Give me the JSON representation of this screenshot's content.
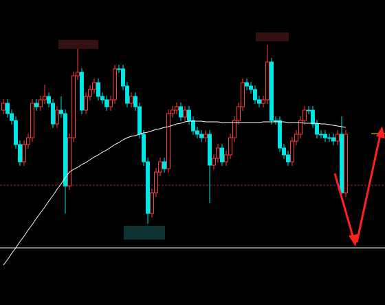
{
  "chart_data": {
    "type": "candlestick",
    "up_color": "#ff3b3b",
    "down_color": "#00e5e5",
    "ylim": [
      0,
      443
    ],
    "open": [
      283,
      293,
      278,
      268,
      233,
      208,
      233,
      243,
      293,
      288,
      298,
      303,
      293,
      263,
      283,
      278,
      173,
      243,
      333,
      338,
      283,
      303,
      313,
      323,
      303,
      298,
      288,
      298,
      343,
      343,
      318,
      293,
      303,
      288,
      248,
      208,
      133,
      163,
      193,
      208,
      198,
      278,
      283,
      288,
      273,
      283,
      268,
      253,
      248,
      243,
      248,
      203,
      213,
      228,
      208,
      218,
      243,
      268,
      288,
      323,
      318,
      313,
      298,
      293,
      298,
      353,
      268,
      268,
      228,
      218,
      208,
      238,
      248,
      268,
      283,
      283,
      263,
      248,
      248,
      243,
      243,
      238,
      248,
      163
    ],
    "high": [
      299,
      299,
      284,
      274,
      239,
      239,
      249,
      299,
      299,
      304,
      320,
      309,
      299,
      289,
      303,
      284,
      249,
      339,
      373,
      344,
      309,
      319,
      329,
      329,
      309,
      304,
      304,
      349,
      349,
      349,
      324,
      309,
      309,
      294,
      254,
      214,
      169,
      199,
      214,
      214,
      284,
      289,
      294,
      294,
      289,
      289,
      274,
      259,
      254,
      254,
      254,
      219,
      234,
      234,
      224,
      249,
      274,
      294,
      329,
      329,
      324,
      319,
      304,
      304,
      378,
      359,
      274,
      274,
      234,
      224,
      244,
      254,
      274,
      289,
      289,
      289,
      269,
      254,
      254,
      249,
      249,
      254,
      274,
      254
    ],
    "low": [
      277,
      272,
      262,
      227,
      202,
      202,
      227,
      237,
      282,
      282,
      292,
      287,
      257,
      257,
      272,
      133,
      167,
      237,
      327,
      277,
      277,
      297,
      307,
      297,
      292,
      282,
      282,
      292,
      337,
      312,
      287,
      287,
      282,
      242,
      202,
      118,
      127,
      157,
      187,
      192,
      192,
      272,
      277,
      267,
      267,
      262,
      247,
      242,
      237,
      237,
      148,
      197,
      207,
      202,
      202,
      212,
      237,
      262,
      282,
      312,
      307,
      292,
      287,
      287,
      292,
      262,
      262,
      222,
      212,
      202,
      202,
      232,
      242,
      262,
      277,
      257,
      242,
      242,
      237,
      237,
      232,
      232,
      158,
      157
    ],
    "close": [
      293,
      278,
      268,
      233,
      208,
      233,
      243,
      293,
      288,
      298,
      303,
      293,
      263,
      283,
      278,
      173,
      243,
      333,
      338,
      283,
      303,
      313,
      323,
      303,
      298,
      288,
      298,
      343,
      343,
      318,
      293,
      303,
      288,
      248,
      208,
      133,
      163,
      193,
      208,
      198,
      278,
      283,
      288,
      273,
      283,
      268,
      253,
      248,
      243,
      248,
      203,
      213,
      228,
      208,
      218,
      243,
      268,
      288,
      323,
      318,
      313,
      298,
      293,
      298,
      353,
      268,
      268,
      228,
      218,
      208,
      238,
      248,
      268,
      283,
      283,
      263,
      248,
      248,
      243,
      243,
      238,
      248,
      163,
      248
    ],
    "moving_average": {
      "color": "#ffffff",
      "values": [
        58,
        66,
        75,
        83,
        92,
        100,
        109,
        117,
        126,
        134,
        142,
        151,
        159,
        168,
        176,
        185,
        193,
        197,
        200,
        204,
        207,
        211,
        215,
        218,
        222,
        225,
        229,
        233,
        236,
        240,
        243,
        245,
        246,
        248,
        250,
        251,
        253,
        255,
        256,
        258,
        259,
        261,
        263,
        264,
        266,
        267,
        267,
        267,
        267,
        266,
        266,
        266,
        266,
        265,
        265,
        265,
        265,
        265,
        265,
        265,
        265,
        265,
        265,
        266,
        266,
        266,
        266,
        266,
        266,
        265,
        265,
        265,
        265,
        264,
        264,
        264,
        264,
        263,
        263,
        262,
        261,
        260,
        259,
        258
      ]
    },
    "reference_lines": [
      {
        "value": 83,
        "color": "#ffffff",
        "dashed": false
      },
      {
        "value": 174,
        "color": "#b22222",
        "dashed": true
      },
      {
        "value": 249,
        "color": "#ffd700",
        "dashed": false
      }
    ]
  }
}
